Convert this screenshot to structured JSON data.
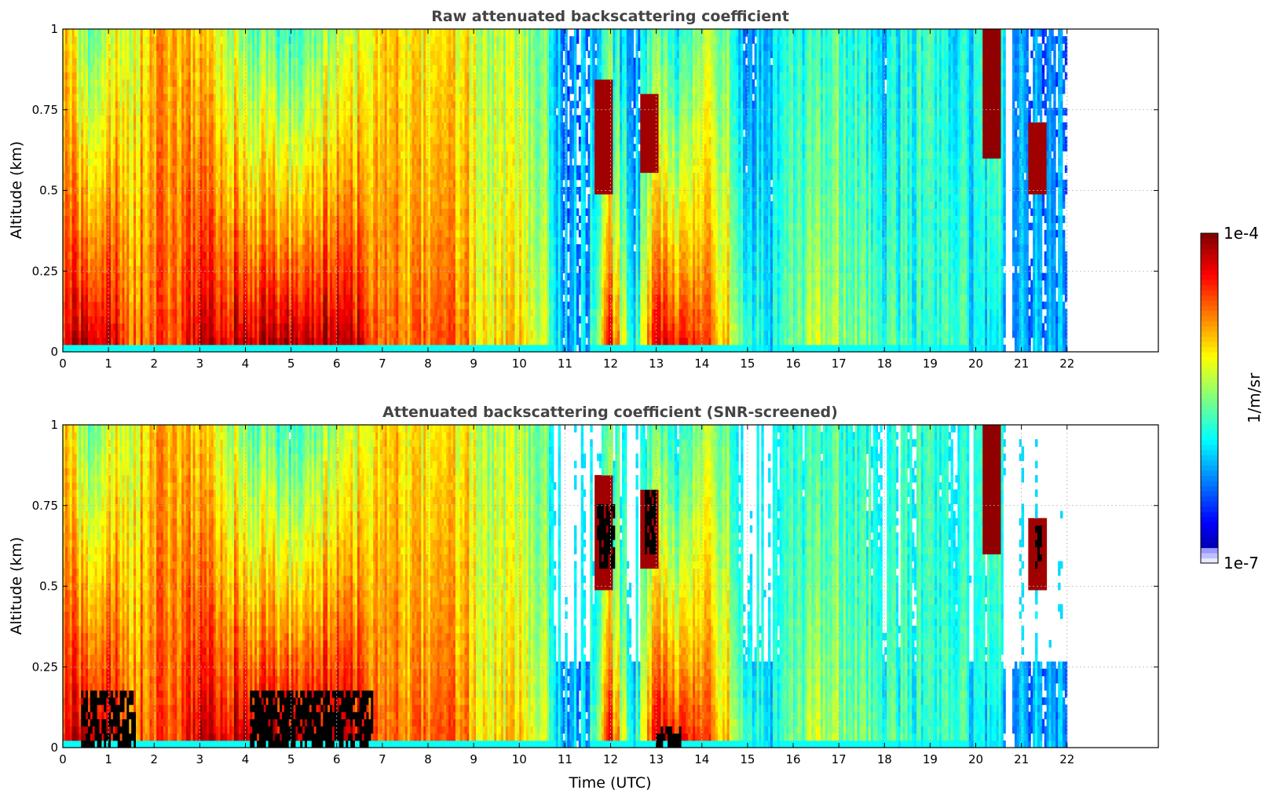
{
  "chart_data": [
    {
      "type": "heatmap",
      "title": "Raw attenuated backscattering coefficient",
      "xlabel": "",
      "ylabel": "Altitude (km)",
      "xlim": [
        0,
        24
      ],
      "ylim": [
        0,
        1
      ],
      "xticks": [
        "0",
        "1",
        "2",
        "3",
        "4",
        "5",
        "6",
        "7",
        "8",
        "9",
        "10",
        "11",
        "12",
        "13",
        "14",
        "15",
        "16",
        "17",
        "18",
        "19",
        "20",
        "21",
        "22"
      ],
      "yticks": [
        "0",
        "0.25",
        "0.5",
        "0.75",
        "1"
      ],
      "grid": true,
      "data_extent_hours": [
        0,
        22
      ],
      "gap_hours": [
        20.65,
        20.8
      ],
      "profiles": {
        "hours": [
          0,
          0.5,
          1,
          1.5,
          2,
          2.5,
          3,
          3.5,
          4,
          4.5,
          5,
          5.5,
          6,
          6.5,
          7,
          7.5,
          8,
          8.5,
          9,
          9.5,
          10,
          10.5,
          11,
          11.5,
          12,
          12.5,
          13,
          13.5,
          14,
          14.5,
          15,
          15.5,
          16,
          16.5,
          17,
          17.5,
          18,
          18.5,
          19,
          19.5,
          20,
          20.5,
          21,
          21.5,
          22
        ],
        "surface_log10_backscatter": [
          -4.4,
          -4.05,
          -4.15,
          -4.6,
          -4.6,
          -4.55,
          -4.15,
          -4.2,
          -4.05,
          -4.1,
          -4.0,
          -4.05,
          -4.05,
          -4.15,
          -4.7,
          -4.7,
          -4.6,
          -4.6,
          -4.9,
          -5.1,
          -5.0,
          -5.2,
          -6.1,
          -6.0,
          -4.3,
          -5.9,
          -4.2,
          -4.3,
          -4.6,
          -4.8,
          -5.6,
          -6.0,
          -5.6,
          -5.3,
          -5.3,
          -5.5,
          -5.6,
          -5.7,
          -5.8,
          -5.6,
          -6.0,
          -6.0,
          -6.1,
          -6.1,
          -6.1
        ],
        "top_log10_backscatter": [
          -4.9,
          -5.6,
          -5.3,
          -5.2,
          -4.9,
          -4.9,
          -5.0,
          -5.2,
          -5.5,
          -5.6,
          -5.8,
          -5.5,
          -5.4,
          -5.2,
          -5.0,
          -5.1,
          -5.1,
          -5.1,
          -5.2,
          -5.4,
          -5.4,
          -5.5,
          -6.3,
          -6.2,
          -5.7,
          -6.3,
          -5.6,
          -5.9,
          -5.5,
          -5.4,
          -6.2,
          -6.1,
          -5.8,
          -5.8,
          -5.6,
          -5.8,
          -6.0,
          -5.8,
          -5.7,
          -6.0,
          -5.9,
          -5.6,
          -6.2,
          -6.3,
          -6.3
        ]
      },
      "features": [
        {
          "hour": 11.85,
          "altitude": [
            0.5,
            0.85
          ],
          "log10_backscatter": -4.1
        },
        {
          "hour": 12.85,
          "altitude": [
            0.55,
            0.8
          ],
          "log10_backscatter": -4.1
        },
        {
          "hour": 20.35,
          "altitude": [
            0.6,
            1.0
          ],
          "log10_backscatter": -4.05
        },
        {
          "hour": 21.35,
          "altitude": [
            0.5,
            0.72
          ],
          "log10_backscatter": -4.1
        }
      ]
    },
    {
      "type": "heatmap",
      "title": "Attenuated backscattering coefficient (SNR-screened)",
      "xlabel": "Time (UTC)",
      "ylabel": "Altitude (km)",
      "xlim": [
        0,
        24
      ],
      "ylim": [
        0,
        1
      ],
      "xticks": [
        "0",
        "1",
        "2",
        "3",
        "4",
        "5",
        "6",
        "7",
        "8",
        "9",
        "10",
        "11",
        "12",
        "13",
        "14",
        "15",
        "16",
        "17",
        "18",
        "19",
        "20",
        "21",
        "22"
      ],
      "yticks": [
        "0",
        "0.25",
        "0.5",
        "0.75",
        "1"
      ],
      "grid": true,
      "screened": true,
      "saturated_color": "#000000",
      "saturated_regions": [
        {
          "hours": [
            0.4,
            1.6
          ],
          "altitude": [
            0,
            0.17
          ]
        },
        {
          "hours": [
            4.1,
            6.8
          ],
          "altitude": [
            0,
            0.17
          ]
        },
        {
          "hours": [
            13.0,
            13.55
          ],
          "altitude": [
            0,
            0.06
          ]
        },
        {
          "hours": [
            11.7,
            12.1
          ],
          "altitude": [
            0.55,
            0.75
          ]
        },
        {
          "hours": [
            12.75,
            13.0
          ],
          "altitude": [
            0.6,
            0.8
          ]
        },
        {
          "hours": [
            21.3,
            21.45
          ],
          "altitude": [
            0.55,
            0.68
          ]
        }
      ]
    }
  ],
  "colorbar": {
    "label": "1/m/sr",
    "max_label": "1e-4",
    "min_label": "1e-7",
    "scale": "log",
    "range_log10": [
      -7,
      -4
    ],
    "colormap": "jet"
  }
}
